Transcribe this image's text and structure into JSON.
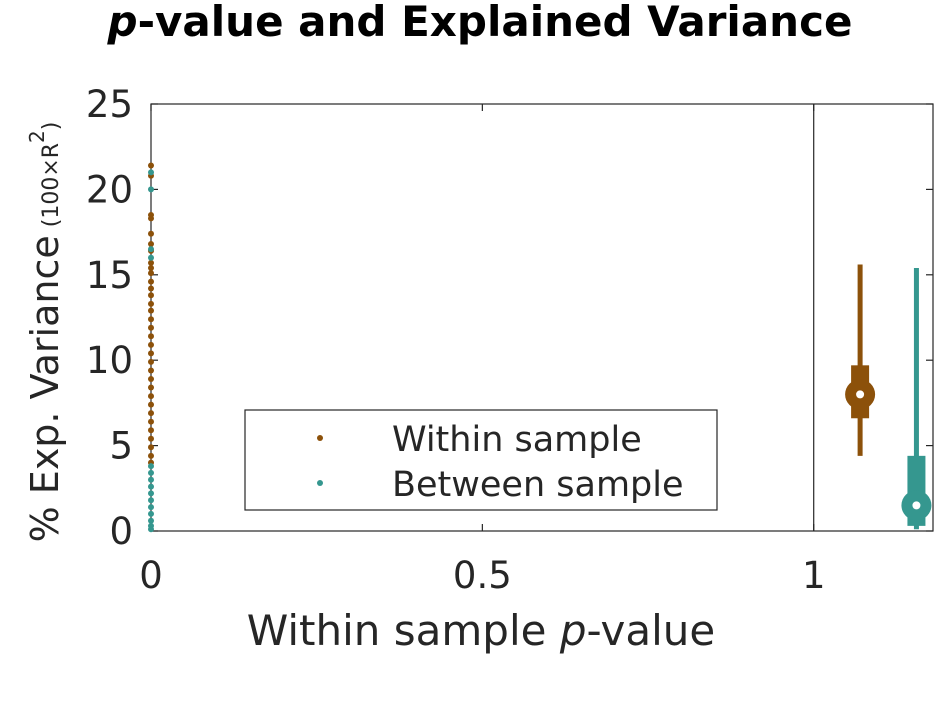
{
  "chart_data": {
    "type": "scatter",
    "title_prefix": "p",
    "title_rest": "-value and Explained Variance",
    "xlabel_prefix": "Within sample ",
    "xlabel_italic": "p",
    "xlabel_suffix": "-value",
    "ylabel_main": "% Exp. Variance",
    "ylabel_unit": "(100×R",
    "ylabel_sup": "2",
    "ylabel_close": ")",
    "xlim": [
      0,
      1.18
    ],
    "ylim": [
      0,
      25
    ],
    "x_ticks": [
      {
        "value": 0,
        "label": "0"
      },
      {
        "value": 0.5,
        "label": "0.5"
      },
      {
        "value": 1,
        "label": "1"
      }
    ],
    "y_ticks": [
      {
        "value": 0,
        "label": "0"
      },
      {
        "value": 5,
        "label": "5"
      },
      {
        "value": 10,
        "label": "10"
      },
      {
        "value": 15,
        "label": "15"
      },
      {
        "value": 20,
        "label": "20"
      },
      {
        "value": 25,
        "label": "25"
      }
    ],
    "divider_x": 1,
    "legend_position": "bottom-center",
    "series": [
      {
        "name": "Within sample",
        "color": "#8c510a",
        "points": [
          {
            "x": 0,
            "y": 21.4
          },
          {
            "x": 0,
            "y": 20.8
          },
          {
            "x": 0,
            "y": 18.5
          },
          {
            "x": 0,
            "y": 18.3
          },
          {
            "x": 0,
            "y": 17.4
          },
          {
            "x": 0,
            "y": 16.8
          },
          {
            "x": 0,
            "y": 16.4
          },
          {
            "x": 0,
            "y": 15.7
          },
          {
            "x": 0,
            "y": 15.4
          },
          {
            "x": 0,
            "y": 15.1
          },
          {
            "x": 0,
            "y": 14.6
          },
          {
            "x": 0,
            "y": 14.2
          },
          {
            "x": 0,
            "y": 13.8
          },
          {
            "x": 0,
            "y": 13.3
          },
          {
            "x": 0,
            "y": 12.9
          },
          {
            "x": 0,
            "y": 12.4
          },
          {
            "x": 0,
            "y": 11.9
          },
          {
            "x": 0,
            "y": 11.4
          },
          {
            "x": 0,
            "y": 10.9
          },
          {
            "x": 0,
            "y": 10.4
          },
          {
            "x": 0,
            "y": 9.9
          },
          {
            "x": 0,
            "y": 9.4
          },
          {
            "x": 0,
            "y": 8.9
          },
          {
            "x": 0,
            "y": 8.4
          },
          {
            "x": 0,
            "y": 7.9
          },
          {
            "x": 0,
            "y": 7.4
          },
          {
            "x": 0,
            "y": 6.9
          },
          {
            "x": 0,
            "y": 6.4
          },
          {
            "x": 0,
            "y": 5.9
          },
          {
            "x": 0,
            "y": 5.4
          },
          {
            "x": 0,
            "y": 4.9
          },
          {
            "x": 0,
            "y": 4.4
          },
          {
            "x": 0,
            "y": 4.0
          }
        ],
        "summary": {
          "x": 1.07,
          "median": 8.0,
          "q1": 6.6,
          "q3": 9.7,
          "min": 4.4,
          "max": 15.6
        }
      },
      {
        "name": "Between sample",
        "color": "#35978f",
        "points": [
          {
            "x": 0,
            "y": 20.0
          },
          {
            "x": 0,
            "y": 21.0
          },
          {
            "x": 0,
            "y": 16.5
          },
          {
            "x": 0,
            "y": 16.0
          },
          {
            "x": 0,
            "y": 3.8
          },
          {
            "x": 0,
            "y": 3.4
          },
          {
            "x": 0,
            "y": 3.0
          },
          {
            "x": 0,
            "y": 2.6
          },
          {
            "x": 0,
            "y": 2.2
          },
          {
            "x": 0,
            "y": 1.8
          },
          {
            "x": 0,
            "y": 1.4
          },
          {
            "x": 0,
            "y": 1.0
          },
          {
            "x": 0,
            "y": 0.6
          },
          {
            "x": 0,
            "y": 0.3
          },
          {
            "x": 0,
            "y": 0.1
          }
        ],
        "summary": {
          "x": 1.155,
          "median": 1.5,
          "q1": 0.3,
          "q3": 4.4,
          "min": 0.1,
          "max": 15.4
        }
      }
    ]
  }
}
